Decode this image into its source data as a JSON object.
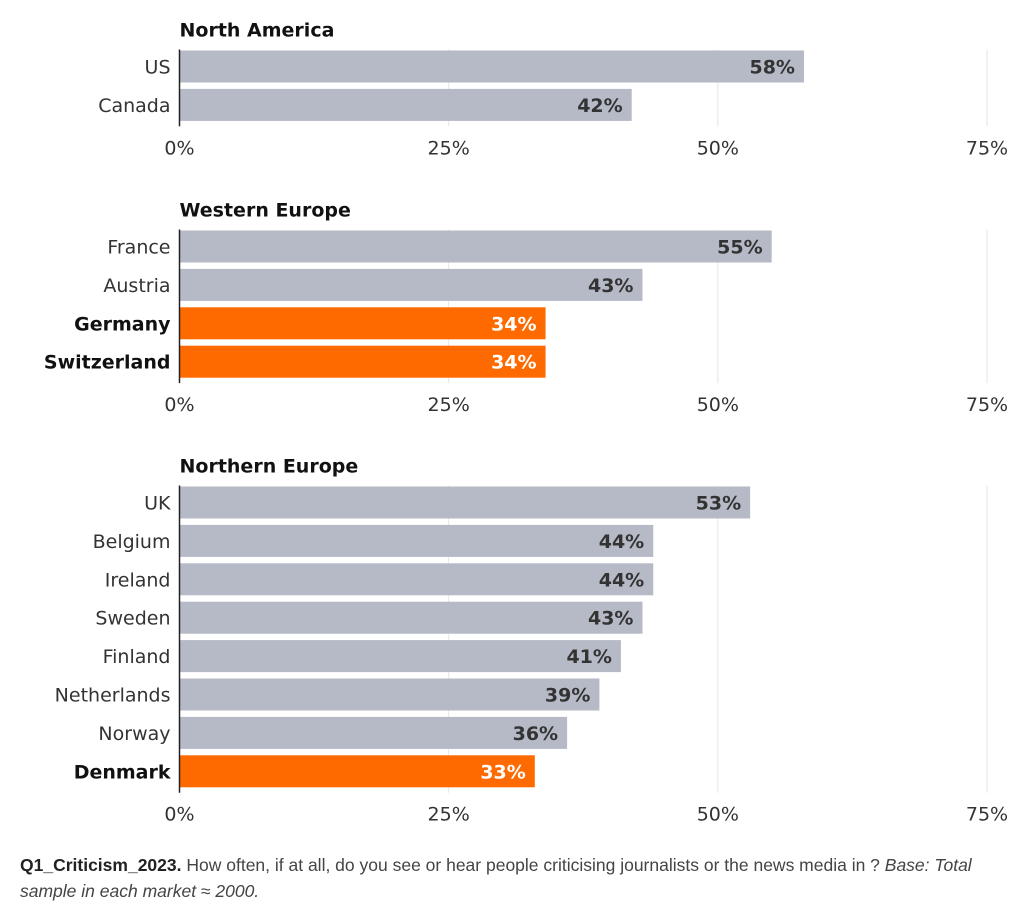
{
  "chart_data": {
    "type": "bar",
    "orientation": "horizontal",
    "xlim": [
      0,
      75
    ],
    "ticks": [
      "0%",
      "25%",
      "50%",
      "75%"
    ],
    "grid": true,
    "colors": {
      "default": "#b5bac6",
      "highlight": "#ff6a00"
    },
    "panels": [
      {
        "title": "North America",
        "categories": [
          "US",
          "Canada"
        ],
        "values": [
          58,
          42
        ],
        "value_labels": [
          "58%",
          "42%"
        ],
        "highlight": [
          false,
          false
        ]
      },
      {
        "title": "Western Europe",
        "categories": [
          "France",
          "Austria",
          "Germany",
          "Switzerland"
        ],
        "values": [
          55,
          43,
          34,
          34
        ],
        "value_labels": [
          "55%",
          "43%",
          "34%",
          "34%"
        ],
        "highlight": [
          false,
          false,
          true,
          true
        ]
      },
      {
        "title": "Northern Europe",
        "categories": [
          "UK",
          "Belgium",
          "Ireland",
          "Sweden",
          "Finland",
          "Netherlands",
          "Norway",
          "Denmark"
        ],
        "values": [
          53,
          44,
          44,
          43,
          41,
          39,
          36,
          33
        ],
        "value_labels": [
          "53%",
          "44%",
          "44%",
          "43%",
          "41%",
          "39%",
          "36%",
          "33%"
        ],
        "highlight": [
          false,
          false,
          false,
          false,
          false,
          false,
          false,
          true
        ]
      }
    ]
  },
  "footnote": {
    "question": "Q1_Criticism_2023.",
    "text": " How often, if at all, do you see or hear people criticising journalists or the news media in ? ",
    "base": "Base: Total sample in each market ≈ 2000."
  }
}
